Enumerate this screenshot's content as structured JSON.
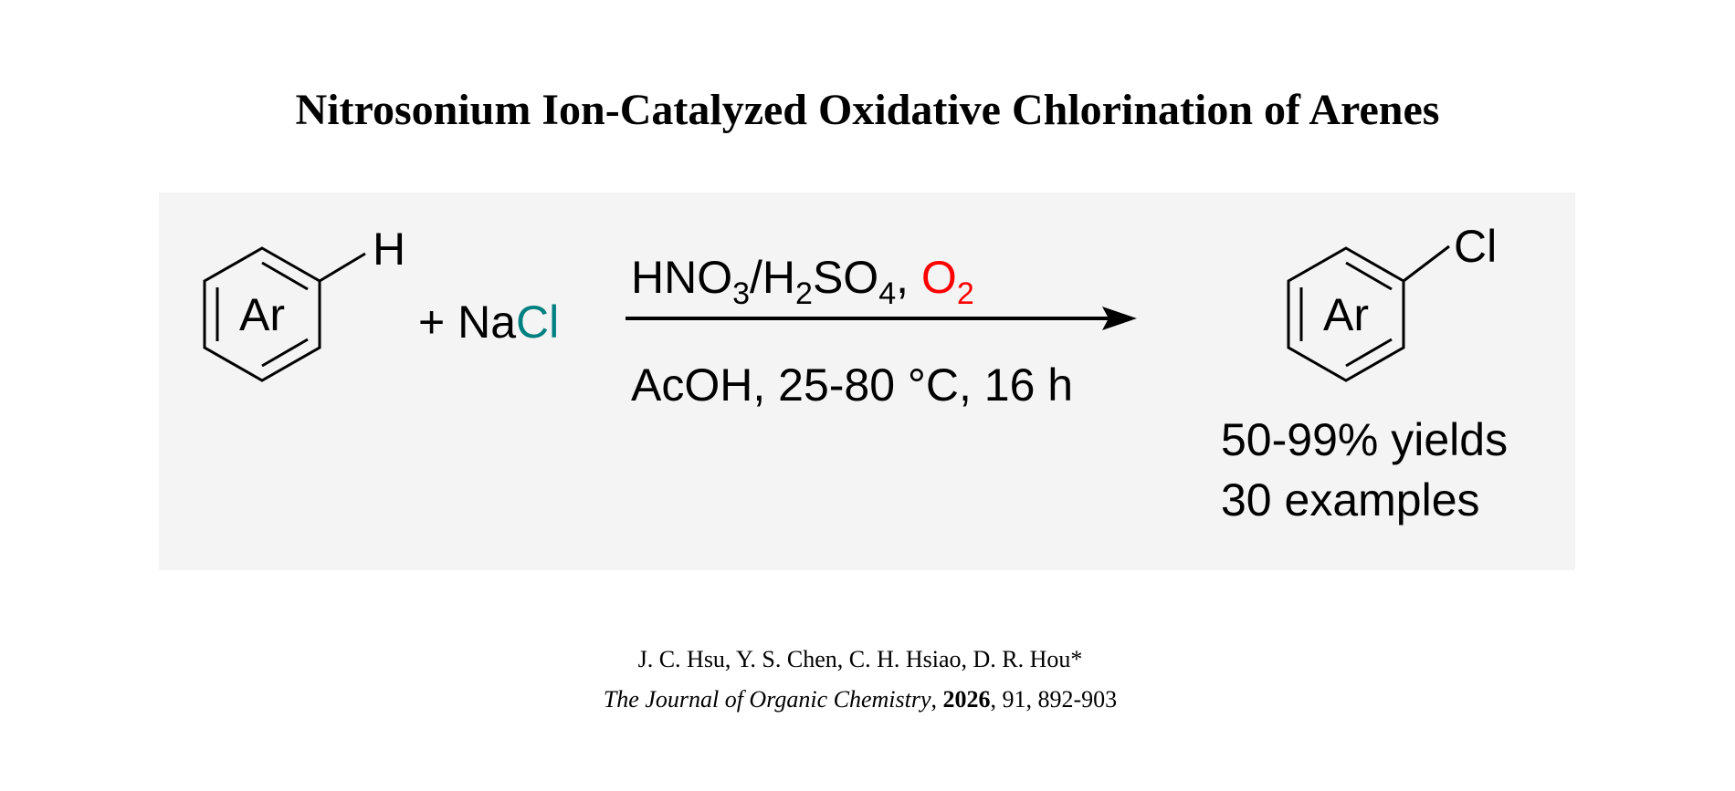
{
  "title": "Nitrosonium Ion-Catalyzed Oxidative Chlorination of Arenes",
  "colors": {
    "chlorine": "#008080",
    "oxygen": "#ff0000",
    "panel_bg": "#f4f4f4"
  },
  "reactant": {
    "ring_label": "Ar",
    "substituent": "H"
  },
  "reagent": {
    "plus": "+ ",
    "na": "Na",
    "cl": "Cl"
  },
  "conditions": {
    "top": {
      "hno": "HNO",
      "sub3": "3",
      "slash_h": "/H",
      "sub2": "2",
      "so": "SO",
      "sub4": "4",
      "comma": ", ",
      "o": "O",
      "o_sub": "2"
    },
    "bottom": "AcOH, 25-80 °C, 16 h"
  },
  "product": {
    "ring_label": "Ar",
    "substituent": "Cl",
    "yields": "50-99% yields",
    "examples": "30 examples"
  },
  "citation": {
    "authors": "J. C. Hsu, Y. S. Chen, C. H. Hsiao, D. R. Hou*",
    "journal": "The Journal of Organic Chemistry",
    "sep1": ", ",
    "year": "2026",
    "rest": ", 91, 892-903"
  }
}
